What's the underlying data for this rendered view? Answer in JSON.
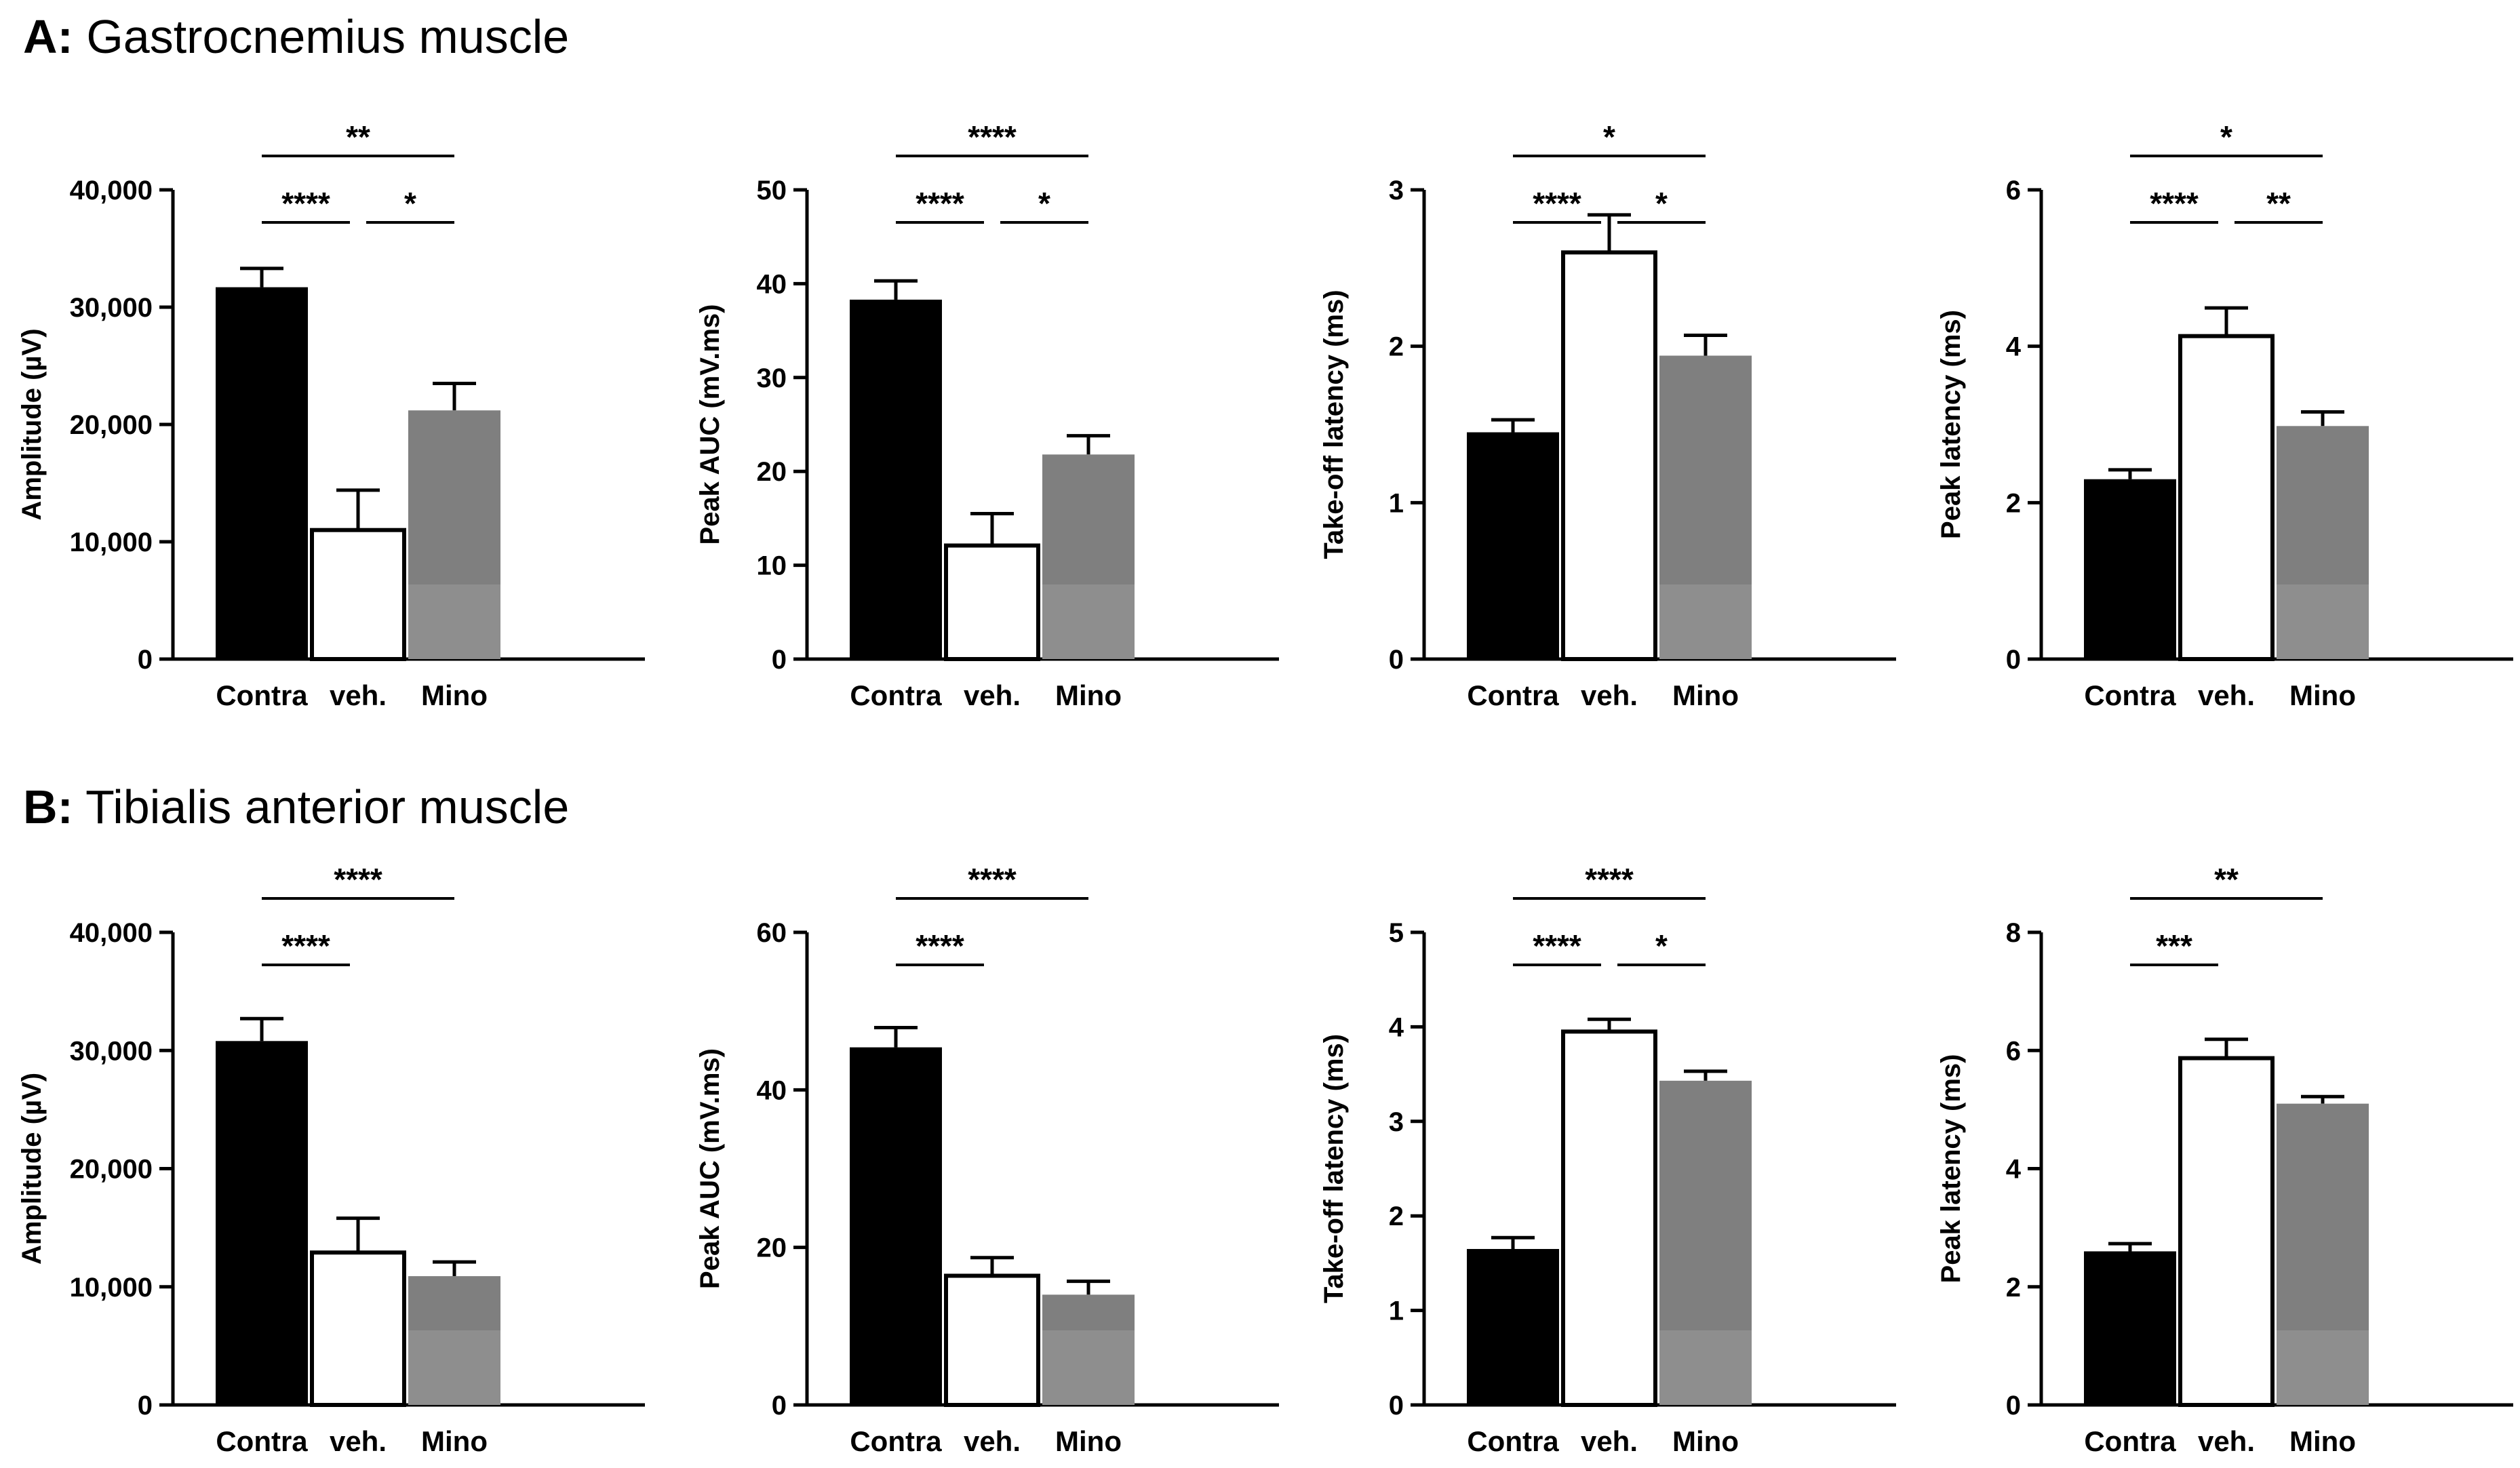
{
  "sections": [
    {
      "tag": "A:",
      "title": "Gastrocnemius muscle"
    },
    {
      "tag": "B:",
      "title": "Tibialis anterior muscle"
    }
  ],
  "colors": {
    "Contra": "#000000",
    "veh.": "#ffffff",
    "Mino": "#7f7f7f",
    "Mino_lower": "#8e8e8e"
  },
  "chart_data": [
    {
      "type": "bar",
      "section": "A",
      "ylabel": "Amplitude (µV)",
      "categories": [
        "Contra",
        "veh.",
        "Mino"
      ],
      "values": [
        31700,
        11000,
        21200
      ],
      "errors": [
        1600,
        3400,
        2300
      ],
      "ylim": [
        0,
        40000
      ],
      "yticks": [
        0,
        10000,
        20000,
        30000,
        40000
      ],
      "ytick_labels": [
        "0",
        "10,000",
        "20,000",
        "30,000",
        "40,000"
      ],
      "significance": [
        {
          "from": 0,
          "to": 2,
          "label": "**"
        },
        {
          "from": 0,
          "to": 1,
          "label": "****"
        },
        {
          "from": 1,
          "to": 2,
          "label": "*"
        }
      ]
    },
    {
      "type": "bar",
      "section": "A",
      "ylabel": "Peak AUC (mV.ms)",
      "categories": [
        "Contra",
        "veh.",
        "Mino"
      ],
      "values": [
        38.3,
        12.1,
        21.8
      ],
      "errors": [
        2.0,
        3.4,
        2.0
      ],
      "ylim": [
        0,
        50
      ],
      "yticks": [
        0,
        10,
        20,
        30,
        40,
        50
      ],
      "ytick_labels": [
        "0",
        "10",
        "20",
        "30",
        "40",
        "50"
      ],
      "significance": [
        {
          "from": 0,
          "to": 2,
          "label": "****"
        },
        {
          "from": 0,
          "to": 1,
          "label": "****"
        },
        {
          "from": 1,
          "to": 2,
          "label": "*"
        }
      ]
    },
    {
      "type": "bar",
      "section": "A",
      "ylabel": "Take-off latency (ms)",
      "categories": [
        "Contra",
        "veh.",
        "Mino"
      ],
      "values": [
        1.45,
        2.6,
        1.94
      ],
      "errors": [
        0.08,
        0.24,
        0.13
      ],
      "ylim": [
        0,
        3
      ],
      "yticks": [
        0,
        1,
        2,
        3
      ],
      "ytick_labels": [
        "0",
        "1",
        "2",
        "3"
      ],
      "significance": [
        {
          "from": 0,
          "to": 2,
          "label": "*"
        },
        {
          "from": 0,
          "to": 1,
          "label": "****"
        },
        {
          "from": 1,
          "to": 2,
          "label": "*"
        }
      ]
    },
    {
      "type": "bar",
      "section": "A",
      "ylabel": "Peak latency (ms)",
      "categories": [
        "Contra",
        "veh.",
        "Mino"
      ],
      "values": [
        2.3,
        4.13,
        2.98
      ],
      "errors": [
        0.12,
        0.36,
        0.18
      ],
      "ylim": [
        0,
        6
      ],
      "yticks": [
        0,
        2,
        4,
        6
      ],
      "ytick_labels": [
        "0",
        "2",
        "4",
        "6"
      ],
      "significance": [
        {
          "from": 0,
          "to": 2,
          "label": "*"
        },
        {
          "from": 0,
          "to": 1,
          "label": "****"
        },
        {
          "from": 1,
          "to": 2,
          "label": "**"
        }
      ]
    },
    {
      "type": "bar",
      "section": "B",
      "ylabel": "Amplitude (µV)",
      "categories": [
        "Contra",
        "veh.",
        "Mino"
      ],
      "values": [
        30800,
        12900,
        10900
      ],
      "errors": [
        1900,
        2900,
        1200
      ],
      "ylim": [
        0,
        40000
      ],
      "yticks": [
        0,
        10000,
        20000,
        30000,
        40000
      ],
      "ytick_labels": [
        "0",
        "10,000",
        "20,000",
        "30,000",
        "40,000"
      ],
      "significance": [
        {
          "from": 0,
          "to": 2,
          "label": "****"
        },
        {
          "from": 0,
          "to": 1,
          "label": "****"
        }
      ]
    },
    {
      "type": "bar",
      "section": "B",
      "ylabel": "Peak AUC (mV.ms)",
      "categories": [
        "Contra",
        "veh.",
        "Mino"
      ],
      "values": [
        45.4,
        16.4,
        14.0
      ],
      "errors": [
        2.5,
        2.3,
        1.7
      ],
      "ylim": [
        0,
        60
      ],
      "yticks": [
        0,
        20,
        40,
        60
      ],
      "ytick_labels": [
        "0",
        "20",
        "40",
        "60"
      ],
      "significance": [
        {
          "from": 0,
          "to": 2,
          "label": "****"
        },
        {
          "from": 0,
          "to": 1,
          "label": "****"
        }
      ]
    },
    {
      "type": "bar",
      "section": "B",
      "ylabel": "Take-off latency (ms)",
      "categories": [
        "Contra",
        "veh.",
        "Mino"
      ],
      "values": [
        1.65,
        3.95,
        3.43
      ],
      "errors": [
        0.12,
        0.13,
        0.1
      ],
      "ylim": [
        0,
        5
      ],
      "yticks": [
        0,
        1,
        2,
        3,
        4,
        5
      ],
      "ytick_labels": [
        "0",
        "1",
        "2",
        "3",
        "4",
        "5"
      ],
      "significance": [
        {
          "from": 0,
          "to": 2,
          "label": "****"
        },
        {
          "from": 0,
          "to": 1,
          "label": "****"
        },
        {
          "from": 1,
          "to": 2,
          "label": "*"
        }
      ]
    },
    {
      "type": "bar",
      "section": "B",
      "ylabel": "Peak latency (ms)",
      "categories": [
        "Contra",
        "veh.",
        "Mino"
      ],
      "values": [
        2.6,
        5.87,
        5.1
      ],
      "errors": [
        0.13,
        0.32,
        0.12
      ],
      "ylim": [
        0,
        8
      ],
      "yticks": [
        0,
        2,
        4,
        6,
        8
      ],
      "ytick_labels": [
        "0",
        "2",
        "4",
        "6",
        "8"
      ],
      "significance": [
        {
          "from": 0,
          "to": 2,
          "label": "**"
        },
        {
          "from": 0,
          "to": 1,
          "label": "***"
        }
      ]
    }
  ]
}
